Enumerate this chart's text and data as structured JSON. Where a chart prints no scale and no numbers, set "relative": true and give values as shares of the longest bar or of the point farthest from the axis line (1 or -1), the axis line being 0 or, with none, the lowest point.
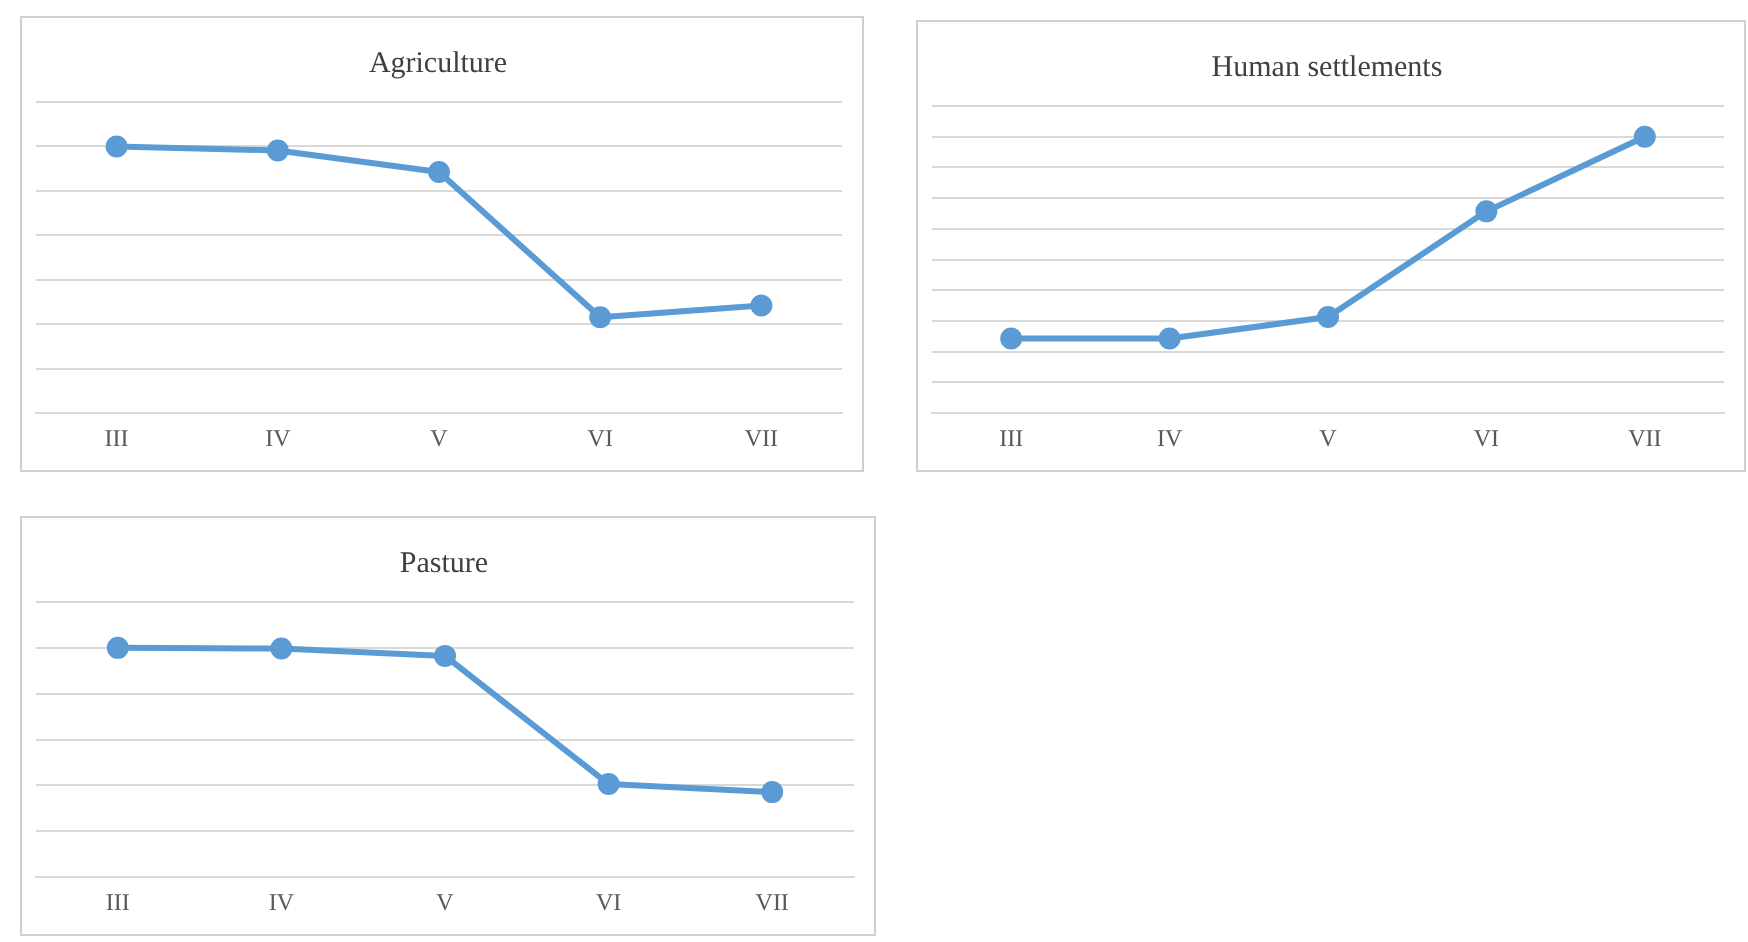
{
  "chart_data": [
    {
      "type": "line",
      "title": "Agriculture",
      "categories": [
        "III",
        "IV",
        "V",
        "VI",
        "VII"
      ],
      "relative": true,
      "grid": "y",
      "marker": "circle",
      "series": [
        {
          "color": "#5b9bd5",
          "values": [
            1,
            0.985,
            0.904,
            0.36,
            0.404
          ]
        }
      ]
    },
    {
      "type": "line",
      "title": "Human settlements",
      "categories": [
        "III",
        "IV",
        "V",
        "VI",
        "VII"
      ],
      "relative": true,
      "grid": "y",
      "marker": "circle",
      "series": [
        {
          "color": "#5b9bd5",
          "values": [
            0.27,
            0.27,
            0.348,
            0.73,
            1
          ]
        }
      ]
    },
    {
      "type": "line",
      "title": "Pasture",
      "categories": [
        "III",
        "IV",
        "V",
        "VI",
        "VII"
      ],
      "relative": true,
      "grid": "y",
      "marker": "circle",
      "series": [
        {
          "color": "#5b9bd5",
          "values": [
            1,
            0.997,
            0.965,
            0.406,
            0.371
          ]
        }
      ]
    }
  ]
}
